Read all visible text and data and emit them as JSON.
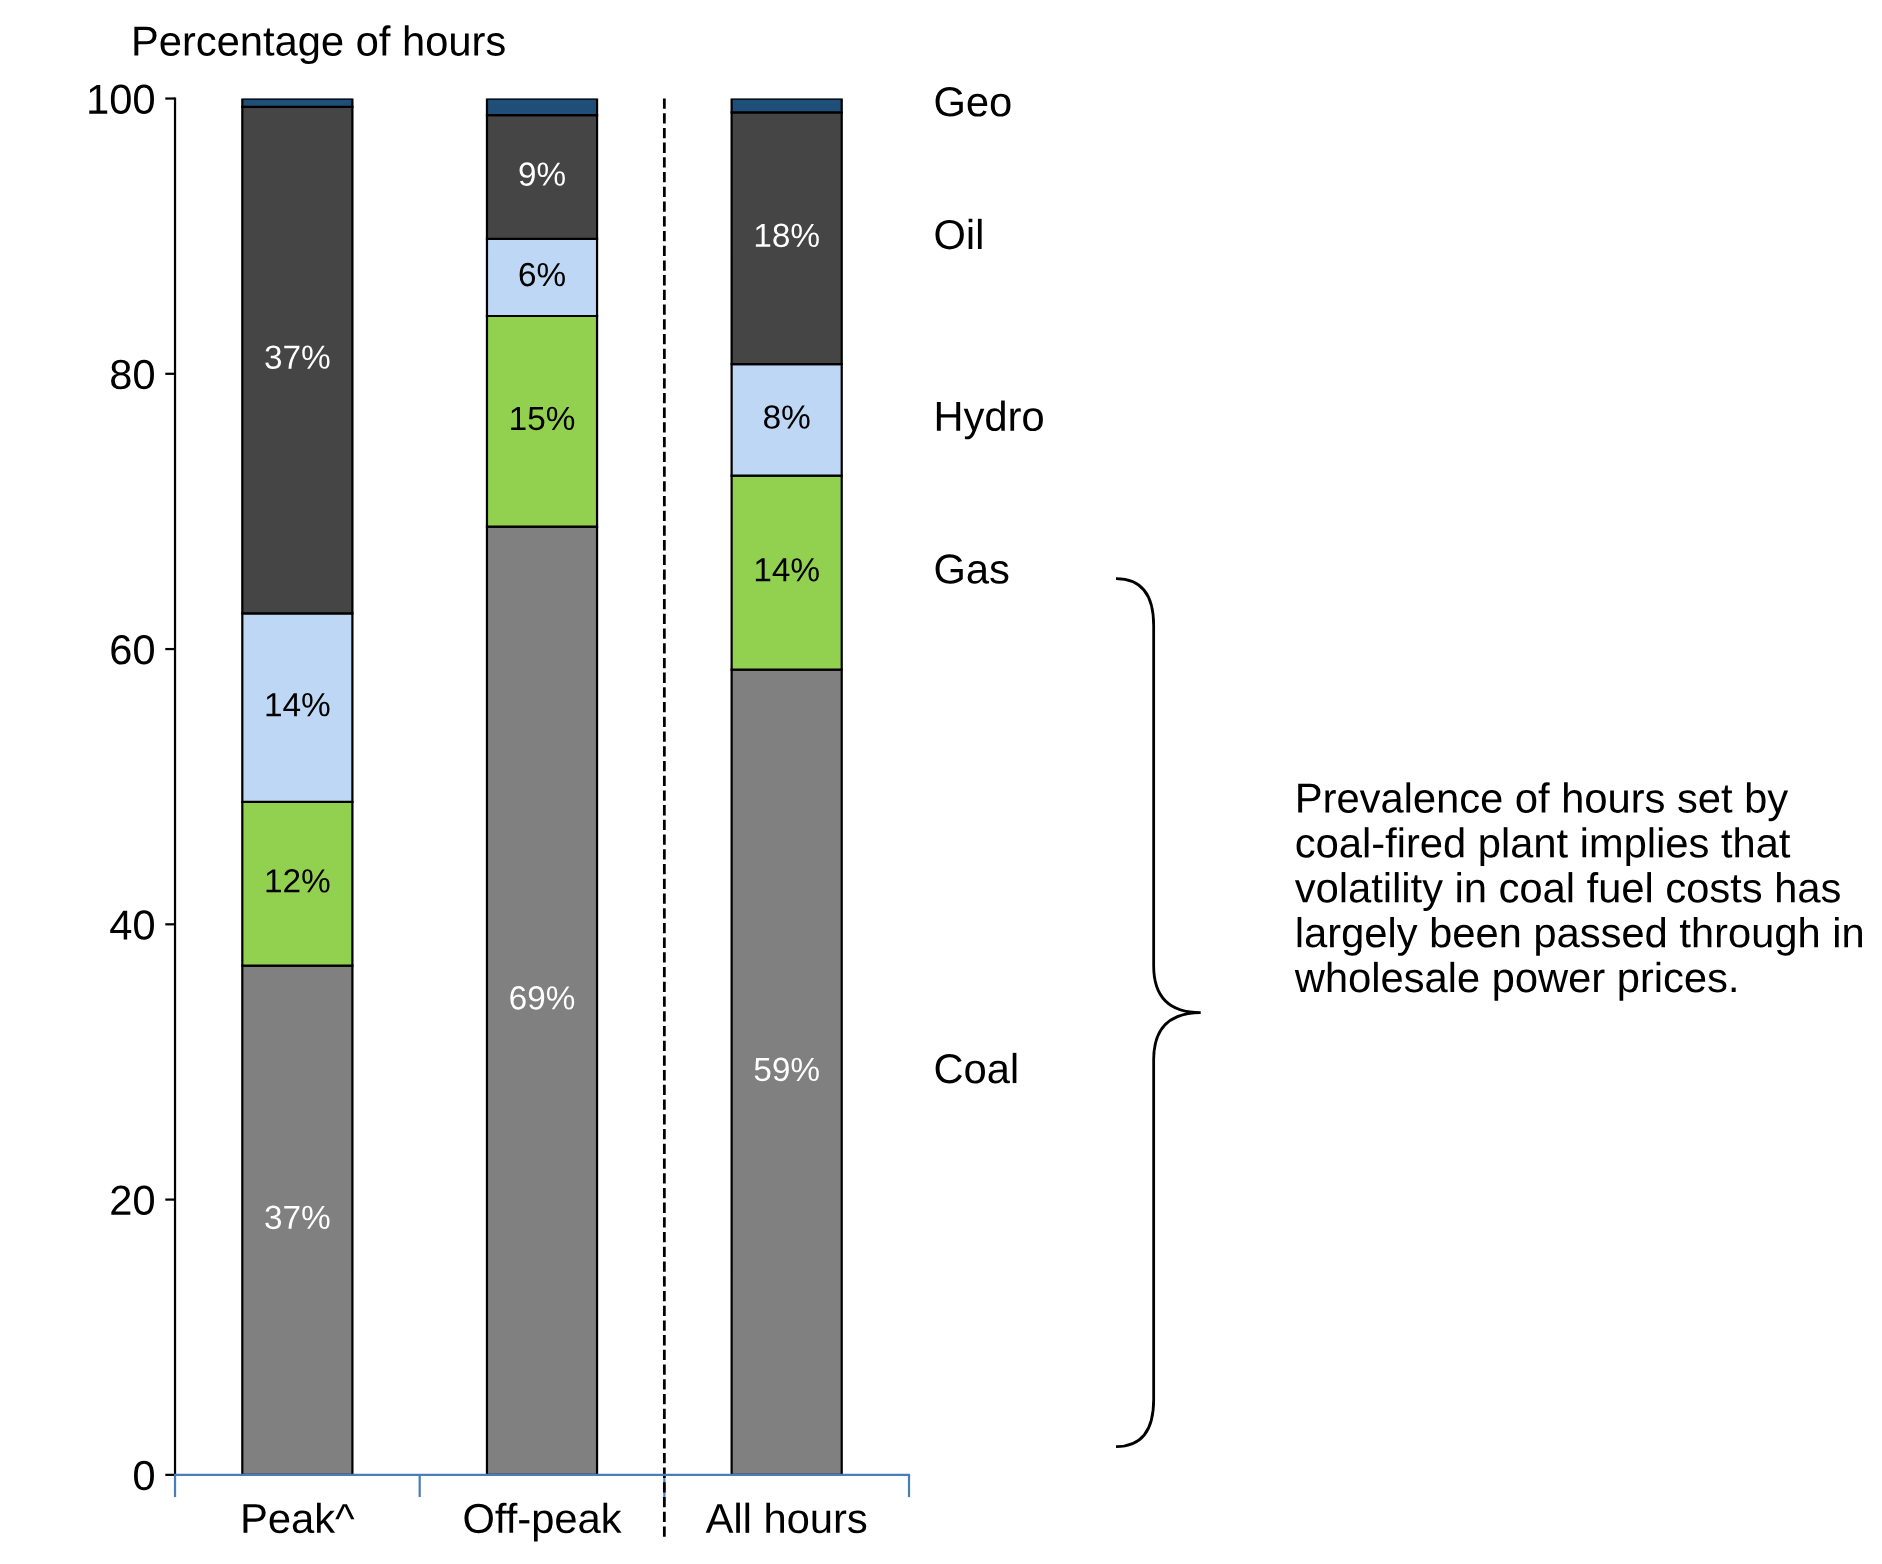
{
  "chart_data": {
    "type": "bar",
    "stacked": true,
    "ylabel": "Percentage of hours",
    "categories": [
      "Peak^",
      "Off-peak",
      "All hours"
    ],
    "series": [
      {
        "name": "Coal",
        "color": "#808080",
        "values": [
          37,
          68.9,
          58.5
        ],
        "value_labels": [
          "37%",
          "69%",
          "59%"
        ]
      },
      {
        "name": "Gas",
        "color": "#92d050",
        "values": [
          11.9,
          15.3,
          14.1
        ],
        "value_labels": [
          "12%",
          "15%",
          "14%"
        ]
      },
      {
        "name": "Hydro",
        "color": "#bdd7f5",
        "values": [
          13.7,
          5.6,
          8.1
        ],
        "value_labels": [
          "14%",
          "6%",
          "8%"
        ]
      },
      {
        "name": "Oil",
        "color": "#454545",
        "values": [
          36.8,
          9.0,
          18.3
        ],
        "value_labels": [
          "37%",
          "9%",
          "18%"
        ]
      },
      {
        "name": "Geo",
        "color": "#1f4e79",
        "values": [
          0.6,
          1.2,
          1.0
        ]
      }
    ],
    "ylim": [
      0,
      100
    ],
    "yticks": [
      0,
      20,
      40,
      60,
      80,
      100
    ],
    "grid": false,
    "legend": false,
    "annotations": [
      "Prevalence of hours set by coal-fired plant implies that volatility in coal fuel costs has largely been passed through in wholesale power prices."
    ]
  }
}
